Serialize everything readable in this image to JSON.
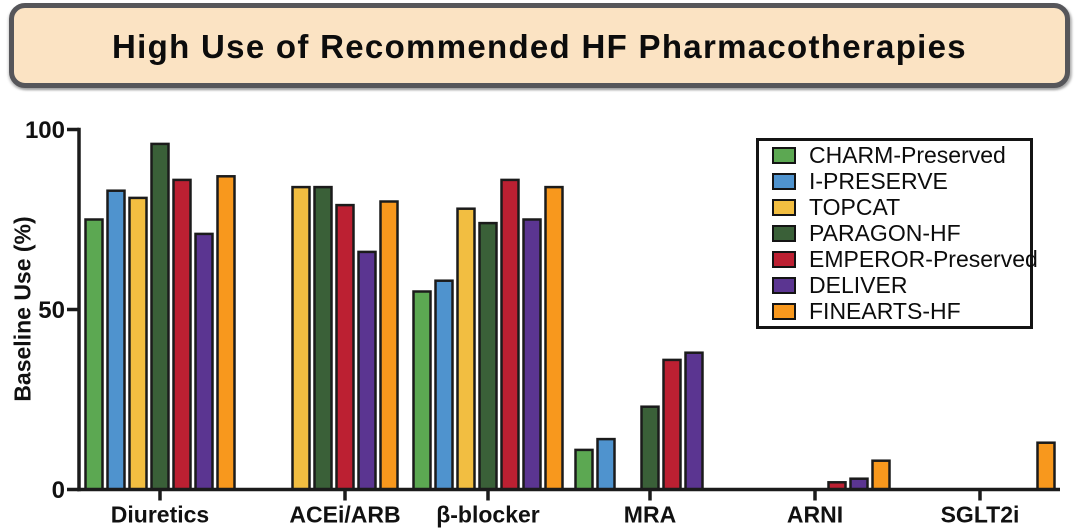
{
  "banner": {
    "background": "#FBE3C3",
    "border": "#56565A"
  },
  "chart_data": {
    "type": "bar",
    "title": "High Use of Recommended HF Pharmacotherapies",
    "xlabel": "",
    "ylabel": "Baseline Use (%)",
    "ylim": [
      0,
      100
    ],
    "yticks": [
      0,
      50,
      100
    ],
    "grid": false,
    "legend_position": "upper right",
    "bar_outline_color": "#1b1b1b",
    "categories": [
      "Diuretics",
      "ACEi/ARB",
      "β-blocker",
      "MRA",
      "ARNI",
      "SGLT2i"
    ],
    "series": [
      {
        "name": "CHARM-Preserved",
        "color": "#5CA852",
        "values": [
          75,
          null,
          55,
          11,
          null,
          null
        ]
      },
      {
        "name": "I-PRESERVE",
        "color": "#4F93CE",
        "values": [
          83,
          null,
          58,
          14,
          null,
          null
        ]
      },
      {
        "name": "TOPCAT",
        "color": "#F2BE41",
        "values": [
          81,
          84,
          78,
          null,
          null,
          null
        ]
      },
      {
        "name": "PARAGON-HF",
        "color": "#3A6038",
        "values": [
          96,
          84,
          74,
          23,
          null,
          null
        ]
      },
      {
        "name": "EMPEROR-Preserved",
        "color": "#BC2032",
        "values": [
          86,
          79,
          86,
          36,
          2,
          null
        ]
      },
      {
        "name": "DELIVER",
        "color": "#5B3591",
        "values": [
          71,
          66,
          75,
          38,
          3,
          null
        ]
      },
      {
        "name": "FINEARTS-HF",
        "color": "#F8981D",
        "values": [
          87,
          80,
          84,
          null,
          8,
          13
        ]
      }
    ],
    "slot_layout": [
      [
        0,
        1,
        2,
        3,
        4,
        5,
        6
      ],
      [
        null,
        2,
        3,
        4,
        5,
        6,
        null
      ],
      [
        0,
        1,
        2,
        3,
        4,
        5,
        6
      ],
      [
        0,
        1,
        null,
        3,
        4,
        5,
        null
      ],
      [
        null,
        null,
        null,
        null,
        4,
        5,
        6
      ],
      [
        null,
        null,
        null,
        null,
        null,
        null,
        6
      ]
    ]
  }
}
